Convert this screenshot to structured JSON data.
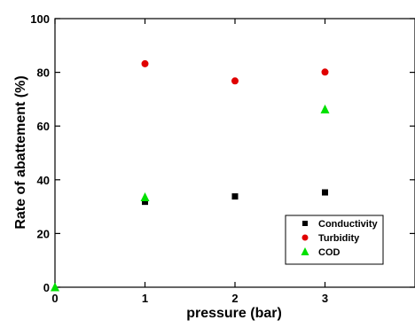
{
  "chart_data": {
    "type": "scatter",
    "xlabel": "pressure (bar)",
    "ylabel": "Rate of abattement (%)",
    "xlim": [
      0,
      4
    ],
    "ylim": [
      0,
      100
    ],
    "x_ticks": [
      {
        "value": 0,
        "label": "0"
      },
      {
        "value": 1,
        "label": "1"
      },
      {
        "value": 2,
        "label": "2"
      },
      {
        "value": 3,
        "label": "3"
      }
    ],
    "y_ticks": [
      {
        "value": 0,
        "label": "0"
      },
      {
        "value": 20,
        "label": "20"
      },
      {
        "value": 40,
        "label": "40"
      },
      {
        "value": 60,
        "label": "60"
      },
      {
        "value": 80,
        "label": "80"
      },
      {
        "value": 100,
        "label": "100"
      }
    ],
    "grid": false,
    "legend_position": "bottom-right",
    "series": [
      {
        "name": "Conductivity",
        "marker": "square",
        "color": "#000000",
        "points": [
          {
            "x": 1,
            "y": 31.8
          },
          {
            "x": 2,
            "y": 33.8
          },
          {
            "x": 3,
            "y": 35.3
          }
        ]
      },
      {
        "name": "Turbidity",
        "marker": "circle",
        "color": "#e00000",
        "points": [
          {
            "x": 1,
            "y": 83.2
          },
          {
            "x": 2,
            "y": 76.8
          },
          {
            "x": 3,
            "y": 80.1
          }
        ]
      },
      {
        "name": "COD",
        "marker": "triangle",
        "color": "#00e000",
        "points": [
          {
            "x": 0,
            "y": 0
          },
          {
            "x": 1,
            "y": 33.5
          },
          {
            "x": 3,
            "y": 66.2
          }
        ]
      }
    ]
  }
}
